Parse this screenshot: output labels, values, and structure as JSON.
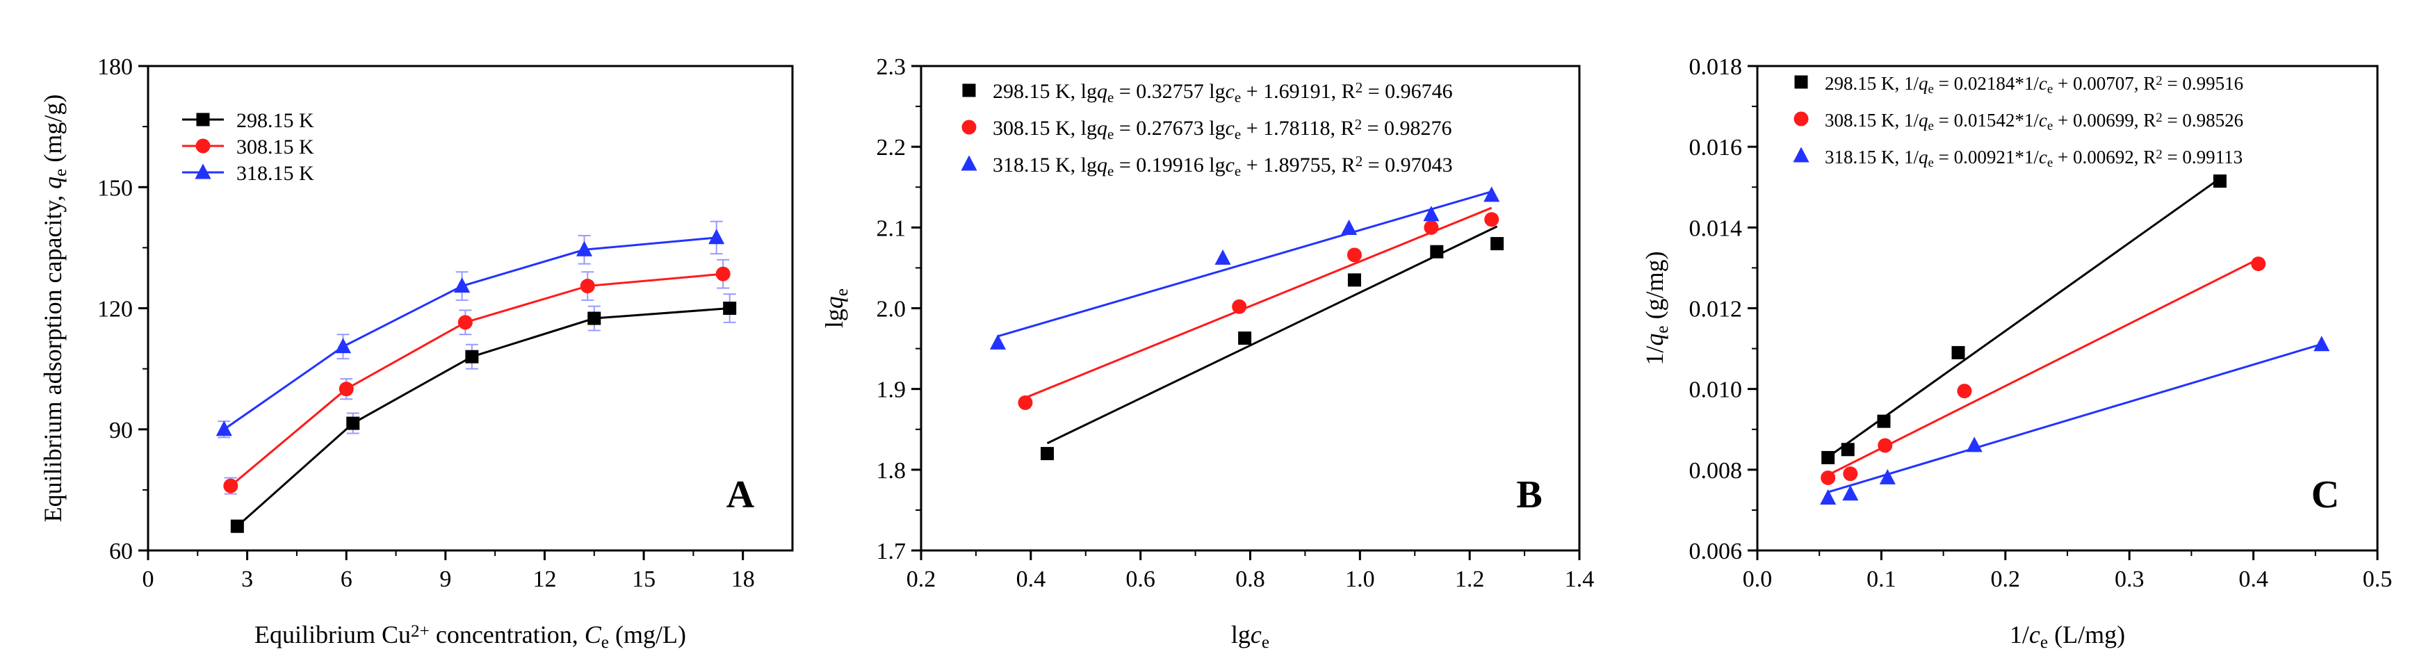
{
  "colors": {
    "black": "#000000",
    "red": "#ff1a1a",
    "blue": "#2233ff"
  },
  "chart_data": [
    {
      "type": "line",
      "panel_letter": "A",
      "xlabel_parts": [
        "Equilibrium Cu",
        "2+",
        " concentration, ",
        "C",
        "e",
        " (mg/L)"
      ],
      "ylabel_parts": [
        "Equilibrium adsorption capacity, ",
        "q",
        "e",
        " (mg/g)"
      ],
      "xlim": [
        0,
        19.5
      ],
      "ylim": [
        60,
        180
      ],
      "x_ticks": [
        0,
        3,
        6,
        9,
        12,
        15,
        18
      ],
      "x_tick_labels": [
        "0",
        "3",
        "6",
        "9",
        "12",
        "15",
        "18"
      ],
      "y_ticks": [
        60,
        90,
        120,
        150,
        180
      ],
      "y_tick_labels": [
        "60",
        "90",
        "120",
        "150",
        "180"
      ],
      "legend_position": "top-left",
      "series": [
        {
          "name": "298.15 K",
          "marker": "square",
          "color": "#000000",
          "x": [
            2.7,
            6.2,
            9.8,
            13.5,
            17.6
          ],
          "y": [
            66,
            91.5,
            108,
            117.5,
            120
          ],
          "errors": [
            1.5,
            2.5,
            3,
            3,
            3.5
          ]
        },
        {
          "name": "308.15 K",
          "marker": "circle",
          "color": "#ff1a1a",
          "x": [
            2.5,
            6.0,
            9.6,
            13.3,
            17.4
          ],
          "y": [
            76,
            100,
            116.5,
            125.5,
            128.5
          ],
          "errors": [
            2,
            2.5,
            3,
            3.5,
            3.5
          ]
        },
        {
          "name": "318.15 K",
          "marker": "triangle",
          "color": "#2233ff",
          "x": [
            2.3,
            5.9,
            9.5,
            13.2,
            17.2
          ],
          "y": [
            90,
            110.5,
            125.5,
            134.5,
            137.5
          ],
          "errors": [
            2,
            3,
            3.5,
            3.5,
            4
          ]
        }
      ]
    },
    {
      "type": "scatter",
      "panel_letter": "B",
      "xlabel_parts": [
        "lg",
        "c",
        "e"
      ],
      "ylabel_parts": [
        "lg",
        "q",
        "e"
      ],
      "xlim": [
        0.2,
        1.4
      ],
      "ylim": [
        1.7,
        2.3
      ],
      "x_ticks": [
        0.2,
        0.4,
        0.6,
        0.8,
        1.0,
        1.2,
        1.4
      ],
      "x_tick_labels": [
        "0.2",
        "0.4",
        "0.6",
        "0.8",
        "1.0",
        "1.2",
        "1.4"
      ],
      "y_ticks": [
        1.7,
        1.8,
        1.9,
        2.0,
        2.1,
        2.2,
        2.3
      ],
      "y_tick_labels": [
        "1.7",
        "1.8",
        "1.9",
        "2.0",
        "2.1",
        "2.2",
        "2.3"
      ],
      "legend_position": "top-left",
      "series": [
        {
          "name": "298.15 K",
          "marker": "square",
          "color": "#000000",
          "x": [
            0.43,
            0.79,
            0.99,
            1.14,
            1.25
          ],
          "y": [
            1.82,
            1.963,
            2.035,
            2.07,
            2.08
          ],
          "fit": {
            "slope": 0.32757,
            "intercept": 1.69191,
            "x_range": [
              0.43,
              1.25
            ]
          },
          "legend_parts": [
            "298.15 K, lg",
            "q",
            "e",
            " = 0.32757 lg",
            "c",
            "e",
            " + 1.69191, R",
            "2",
            " = 0.96746"
          ]
        },
        {
          "name": "308.15 K",
          "marker": "circle",
          "color": "#ff1a1a",
          "x": [
            0.39,
            0.78,
            0.99,
            1.13,
            1.24
          ],
          "y": [
            1.883,
            2.002,
            2.066,
            2.1,
            2.11
          ],
          "fit": {
            "slope": 0.27673,
            "intercept": 1.78118,
            "x_range": [
              0.39,
              1.24
            ]
          },
          "legend_parts": [
            "308.15 K, lg",
            "q",
            "e",
            " = 0.27673 lg",
            "c",
            "e",
            " + 1.78118, R",
            "2",
            " = 0.98276"
          ]
        },
        {
          "name": "318.15 K",
          "marker": "triangle",
          "color": "#2233ff",
          "x": [
            0.34,
            0.75,
            0.98,
            1.13,
            1.24
          ],
          "y": [
            1.957,
            2.062,
            2.099,
            2.116,
            2.14
          ],
          "fit": {
            "slope": 0.19916,
            "intercept": 1.89755,
            "x_range": [
              0.34,
              1.24
            ]
          },
          "legend_parts": [
            "318.15 K, lg",
            "q",
            "e",
            " = 0.19916 lg",
            "c",
            "e",
            " + 1.89755, R",
            "2",
            " = 0.97043"
          ]
        }
      ]
    },
    {
      "type": "scatter",
      "panel_letter": "C",
      "xlabel_parts": [
        "1/",
        "c",
        "e",
        " (L/mg)"
      ],
      "ylabel_parts": [
        "1/",
        "q",
        "e",
        " (g/mg)"
      ],
      "xlim": [
        0.0,
        0.5
      ],
      "ylim": [
        0.006,
        0.018
      ],
      "x_ticks": [
        0.0,
        0.1,
        0.2,
        0.3,
        0.4,
        0.5
      ],
      "x_tick_labels": [
        "0.0",
        "0.1",
        "0.2",
        "0.3",
        "0.4",
        "0.5"
      ],
      "y_ticks": [
        0.006,
        0.008,
        0.01,
        0.012,
        0.014,
        0.016,
        0.018
      ],
      "y_tick_labels": [
        "0.006",
        "0.008",
        "0.010",
        "0.012",
        "0.014",
        "0.016",
        "0.018"
      ],
      "legend_position": "top-left",
      "series": [
        {
          "name": "298.15 K",
          "marker": "square",
          "color": "#000000",
          "x": [
            0.057,
            0.073,
            0.102,
            0.162,
            0.373
          ],
          "y": [
            0.0083,
            0.0085,
            0.0092,
            0.0109,
            0.01515
          ],
          "fit": {
            "slope": 0.02184,
            "intercept": 0.00707,
            "x_range": [
              0.057,
              0.373
            ]
          },
          "legend_parts": [
            "298.15 K, 1/",
            "q",
            "e",
            " = 0.02184*1/",
            "c",
            "e",
            " + 0.00707, R",
            "2",
            " = 0.99516"
          ]
        },
        {
          "name": "308.15 K",
          "marker": "circle",
          "color": "#ff1a1a",
          "x": [
            0.057,
            0.075,
            0.103,
            0.167,
            0.404
          ],
          "y": [
            0.0078,
            0.0079,
            0.0086,
            0.00995,
            0.0131
          ],
          "fit": {
            "slope": 0.01542,
            "intercept": 0.00699,
            "x_range": [
              0.057,
              0.404
            ]
          },
          "legend_parts": [
            "308.15 K, 1/",
            "q",
            "e",
            " = 0.01542*1/",
            "c",
            "e",
            " + 0.00699, R",
            "2",
            " = 0.98526"
          ]
        },
        {
          "name": "318.15 K",
          "marker": "triangle",
          "color": "#2233ff",
          "x": [
            0.057,
            0.075,
            0.105,
            0.175,
            0.455
          ],
          "y": [
            0.0073,
            0.0074,
            0.0078,
            0.0086,
            0.0111
          ],
          "fit": {
            "slope": 0.00921,
            "intercept": 0.00692,
            "x_range": [
              0.057,
              0.455
            ]
          },
          "legend_parts": [
            "318.15 K, 1/",
            "q",
            "e",
            " = 0.00921*1/",
            "c",
            "e",
            " + 0.00692, R",
            "2",
            " = 0.99113"
          ]
        }
      ]
    }
  ]
}
